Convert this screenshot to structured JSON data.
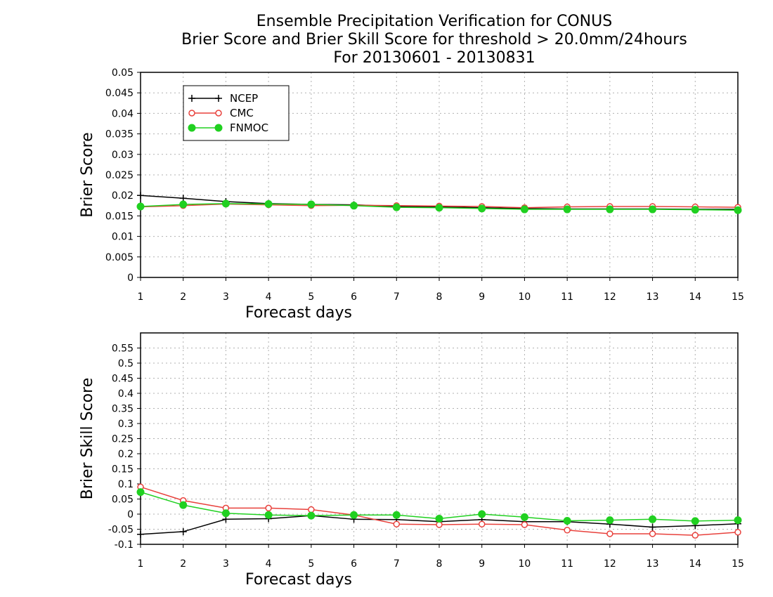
{
  "title_lines": [
    "Ensemble Precipitation Verification for CONUS",
    "Brier Score and Brier Skill Score for threshold > 20.0mm/24hours",
    "For 20130601 - 20130831"
  ],
  "colors": {
    "NCEP": "#000000",
    "CMC": "#e8413c",
    "FNMOC": "#20d020",
    "grid": "#b0b0b0"
  },
  "chart_data": [
    {
      "type": "line",
      "title": "",
      "xlabel": "Forecast days",
      "ylabel": "Brier Score",
      "x": [
        1,
        2,
        3,
        4,
        5,
        6,
        7,
        8,
        9,
        10,
        11,
        12,
        13,
        14,
        15
      ],
      "xlim": [
        1,
        15
      ],
      "ylim": [
        0,
        0.05
      ],
      "yticks": [
        "0",
        "0.005",
        "0.01",
        "0.015",
        "0.02",
        "0.025",
        "0.03",
        "0.035",
        "0.04",
        "0.045",
        "0.05"
      ],
      "grid": true,
      "legend": "top-left",
      "series": [
        {
          "name": "NCEP",
          "marker": "plus",
          "values": [
            0.02,
            0.0193,
            0.0185,
            0.018,
            0.0178,
            0.0177,
            0.0173,
            0.0172,
            0.017,
            0.0168,
            0.0167,
            0.0167,
            0.0167,
            0.0166,
            0.0166
          ]
        },
        {
          "name": "CMC",
          "marker": "open-circle",
          "values": [
            0.0172,
            0.0175,
            0.0179,
            0.0177,
            0.0175,
            0.0176,
            0.0175,
            0.0174,
            0.0173,
            0.017,
            0.0172,
            0.0173,
            0.0173,
            0.0172,
            0.0171
          ]
        },
        {
          "name": "FNMOC",
          "marker": "filled-circle",
          "values": [
            0.0173,
            0.0178,
            0.018,
            0.0179,
            0.0178,
            0.0175,
            0.0171,
            0.017,
            0.0168,
            0.0166,
            0.0166,
            0.0166,
            0.0166,
            0.0165,
            0.0164
          ]
        }
      ]
    },
    {
      "type": "line",
      "title": "",
      "xlabel": "Forecast days",
      "ylabel": "Brier Skill Score",
      "x": [
        1,
        2,
        3,
        4,
        5,
        6,
        7,
        8,
        9,
        10,
        11,
        12,
        13,
        14,
        15
      ],
      "xlim": [
        1,
        15
      ],
      "ylim": [
        -0.1,
        0.6
      ],
      "yticks": [
        "-0.1",
        "-0.05",
        "0",
        "0.05",
        "0.1",
        "0.15",
        "0.2",
        "0.25",
        "0.3",
        "0.35",
        "0.4",
        "0.45",
        "0.5",
        "0.55"
      ],
      "grid": true,
      "series": [
        {
          "name": "NCEP",
          "marker": "plus",
          "values": [
            -0.067,
            -0.058,
            -0.017,
            -0.015,
            -0.005,
            -0.017,
            -0.018,
            -0.025,
            -0.018,
            -0.025,
            -0.025,
            -0.033,
            -0.043,
            -0.038,
            -0.032
          ]
        },
        {
          "name": "CMC",
          "marker": "open-circle",
          "values": [
            0.09,
            0.045,
            0.02,
            0.02,
            0.015,
            -0.003,
            -0.033,
            -0.035,
            -0.033,
            -0.035,
            -0.053,
            -0.065,
            -0.065,
            -0.07,
            -0.06
          ]
        },
        {
          "name": "FNMOC",
          "marker": "filled-circle",
          "values": [
            0.073,
            0.03,
            0.003,
            -0.003,
            -0.005,
            -0.003,
            -0.003,
            -0.015,
            0.0,
            -0.01,
            -0.022,
            -0.02,
            -0.017,
            -0.023,
            -0.02
          ]
        }
      ]
    }
  ]
}
